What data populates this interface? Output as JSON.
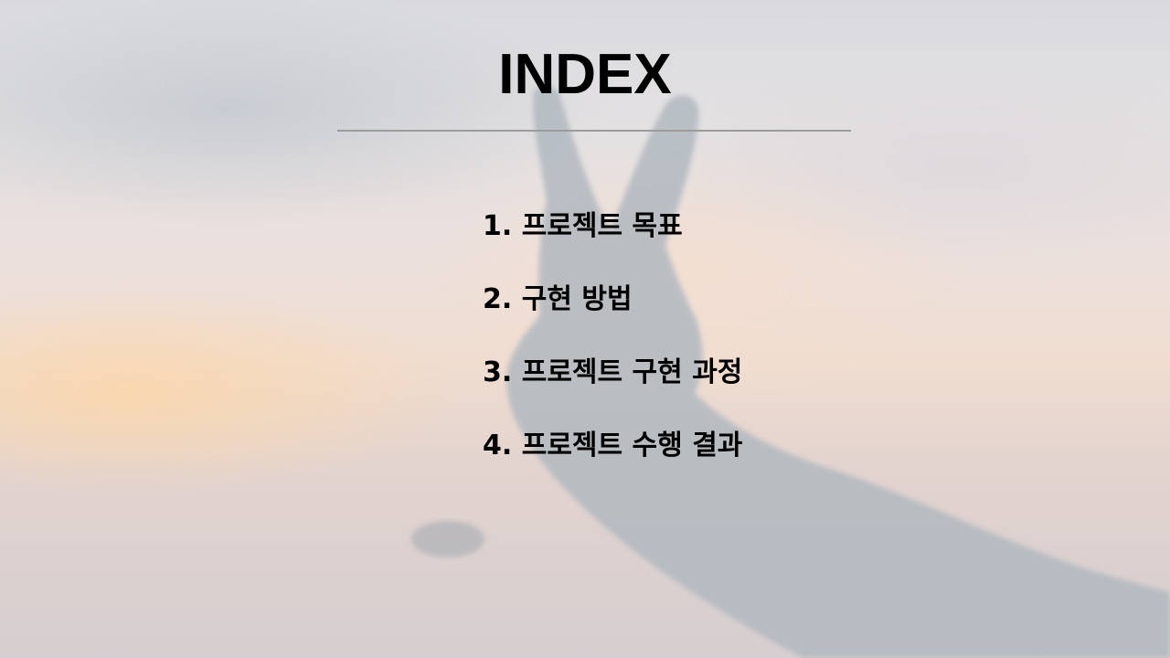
{
  "slide": {
    "title": "INDEX",
    "items": [
      {
        "label": "1. 프로젝트 목표"
      },
      {
        "label": "2. 구현 방법"
      },
      {
        "label": "3. 프로젝트 구현 과정"
      },
      {
        "label": "4. 프로젝트 수행 결과"
      }
    ]
  },
  "colors": {
    "title": "#000000",
    "divider": "#9c9c9c",
    "silhouette": "#b0b8bf"
  }
}
